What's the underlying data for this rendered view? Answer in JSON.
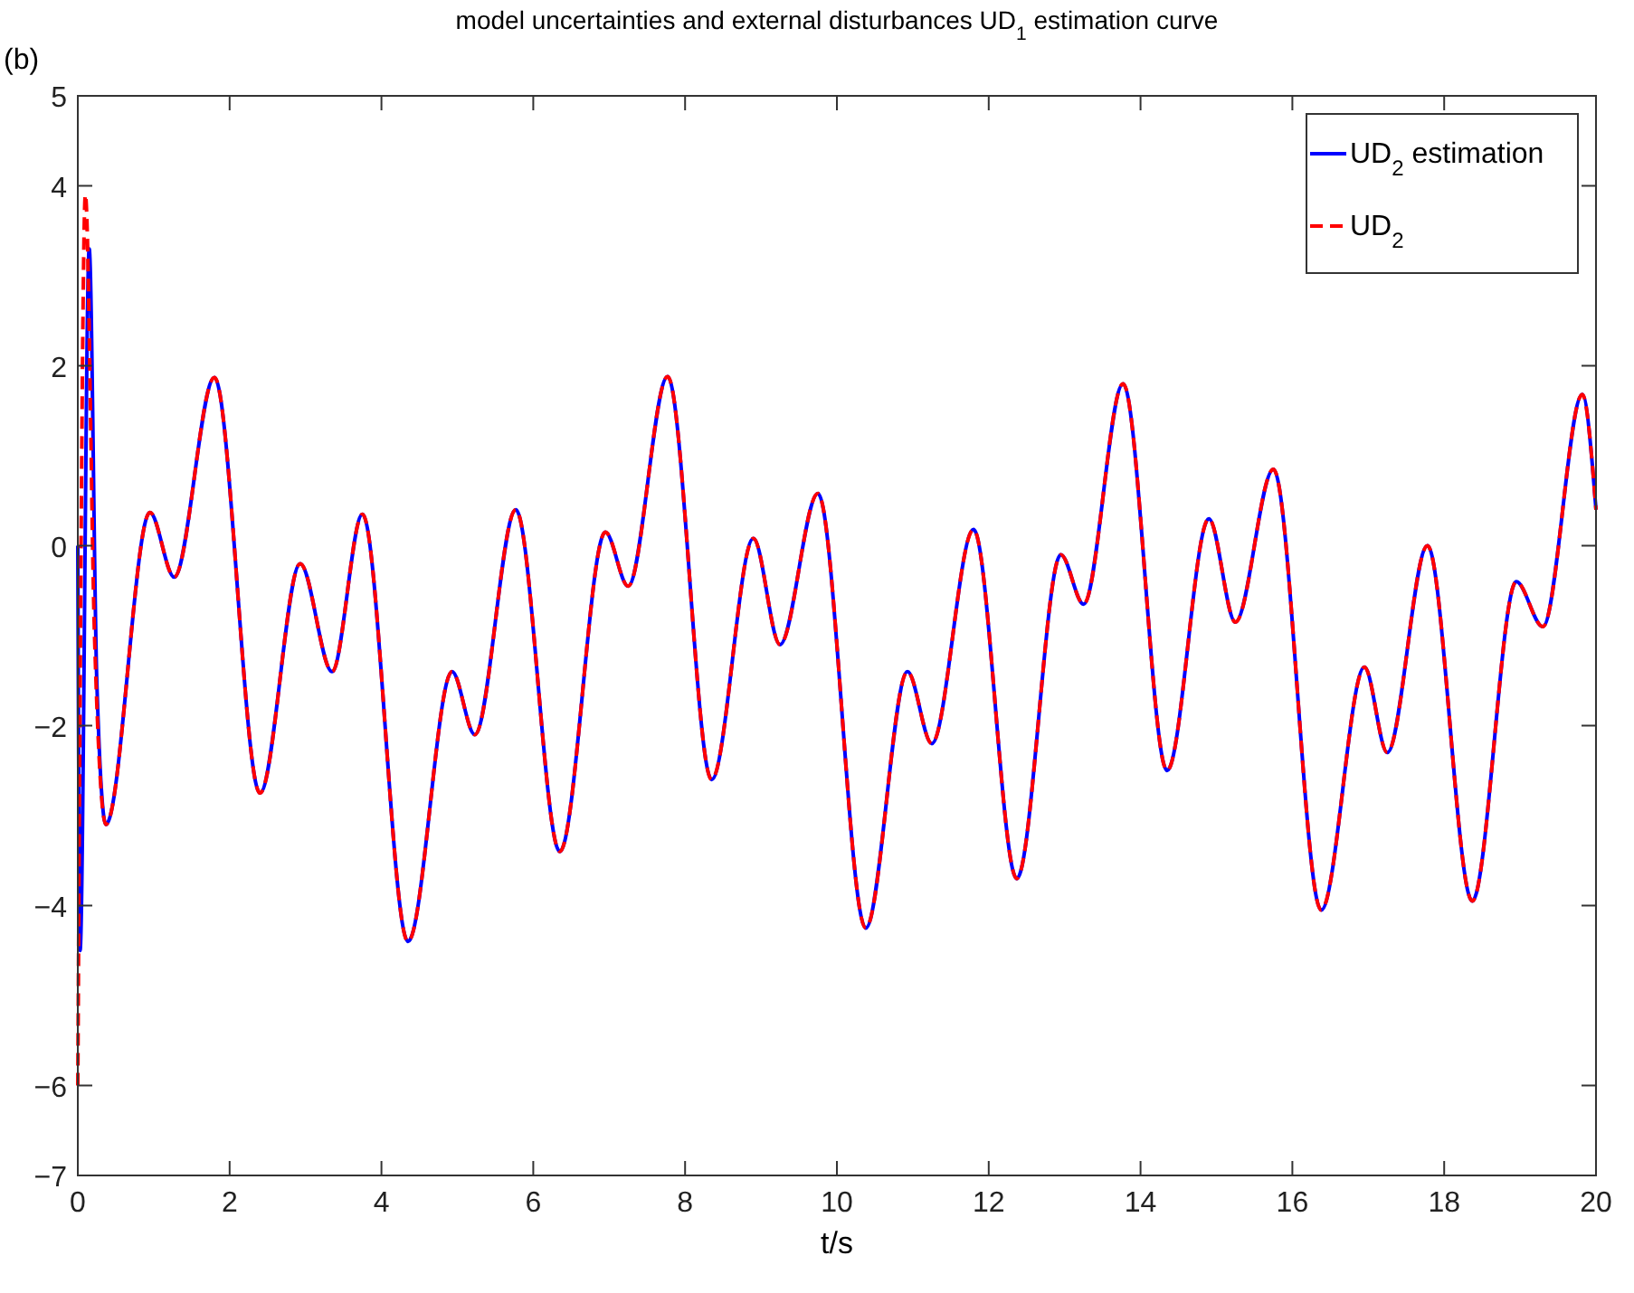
{
  "chart_data": {
    "type": "line",
    "title": "model uncertainties and external disturbances UD$_{1}$ estimation curve",
    "xlabel": "t/s",
    "annotations": [
      "(b)"
    ],
    "xlim": [
      0,
      20
    ],
    "xticks": [
      0,
      2,
      4,
      6,
      8,
      10,
      12,
      14,
      16,
      18,
      20
    ],
    "ylim": [
      -7,
      5
    ],
    "yticks": [
      -7,
      -6,
      -4,
      -2,
      0,
      2,
      4,
      5
    ],
    "grid": false,
    "legend": "top right",
    "series": [
      {
        "name": "UD$_{2}$ estimation",
        "color": "#0000ff",
        "line_style": "solid",
        "x": [
          0,
          0.03,
          0.15,
          0.25,
          0.37,
          0.95,
          1.27,
          1.8,
          2.4,
          2.93,
          3.35,
          3.75,
          4.35,
          4.93,
          5.23,
          5.77,
          6.35,
          6.95,
          7.25,
          7.77,
          8.35,
          8.9,
          9.25,
          9.75,
          10.38,
          10.93,
          11.25,
          11.8,
          12.37,
          12.95,
          13.25,
          13.77,
          14.35,
          14.9,
          15.25,
          15.75,
          16.38,
          16.95,
          17.25,
          17.78,
          18.37,
          18.95,
          19.3,
          19.82,
          20
        ],
        "values": [
          0,
          -4.5,
          3.3,
          -1.5,
          -3.1,
          0.37,
          -0.35,
          1.87,
          -2.75,
          -0.2,
          -1.4,
          0.35,
          -4.4,
          -1.4,
          -2.1,
          0.4,
          -3.4,
          0.15,
          -0.45,
          1.88,
          -2.6,
          0.08,
          -1.1,
          0.58,
          -4.25,
          -1.4,
          -2.2,
          0.18,
          -3.7,
          -0.1,
          -0.65,
          1.8,
          -2.5,
          0.3,
          -0.85,
          0.85,
          -4.05,
          -1.35,
          -2.3,
          0,
          -3.95,
          -0.4,
          -0.9,
          1.68,
          0.4
        ]
      },
      {
        "name": "UD$_{2}$",
        "color": "#ff0000",
        "line_style": "dashed",
        "x": [
          0,
          0.1,
          0.22,
          0.37,
          0.95,
          1.27,
          1.8,
          2.4,
          2.93,
          3.35,
          3.75,
          4.35,
          4.93,
          5.23,
          5.77,
          6.35,
          6.95,
          7.25,
          7.77,
          8.35,
          8.9,
          9.25,
          9.75,
          10.38,
          10.93,
          11.25,
          11.8,
          12.37,
          12.95,
          13.25,
          13.77,
          14.35,
          14.9,
          15.25,
          15.75,
          16.38,
          16.95,
          17.25,
          17.78,
          18.37,
          18.95,
          19.3,
          19.82,
          20
        ],
        "values": [
          -6,
          3.9,
          -1,
          -3.1,
          0.37,
          -0.35,
          1.87,
          -2.75,
          -0.2,
          -1.4,
          0.35,
          -4.4,
          -1.4,
          -2.1,
          0.4,
          -3.4,
          0.15,
          -0.45,
          1.88,
          -2.6,
          0.08,
          -1.1,
          0.58,
          -4.25,
          -1.4,
          -2.2,
          0.18,
          -3.7,
          -0.1,
          -0.65,
          1.8,
          -2.5,
          0.3,
          -0.85,
          0.85,
          -4.05,
          -1.35,
          -2.3,
          0,
          -3.95,
          -0.4,
          -0.9,
          1.68,
          0.4
        ]
      }
    ]
  }
}
